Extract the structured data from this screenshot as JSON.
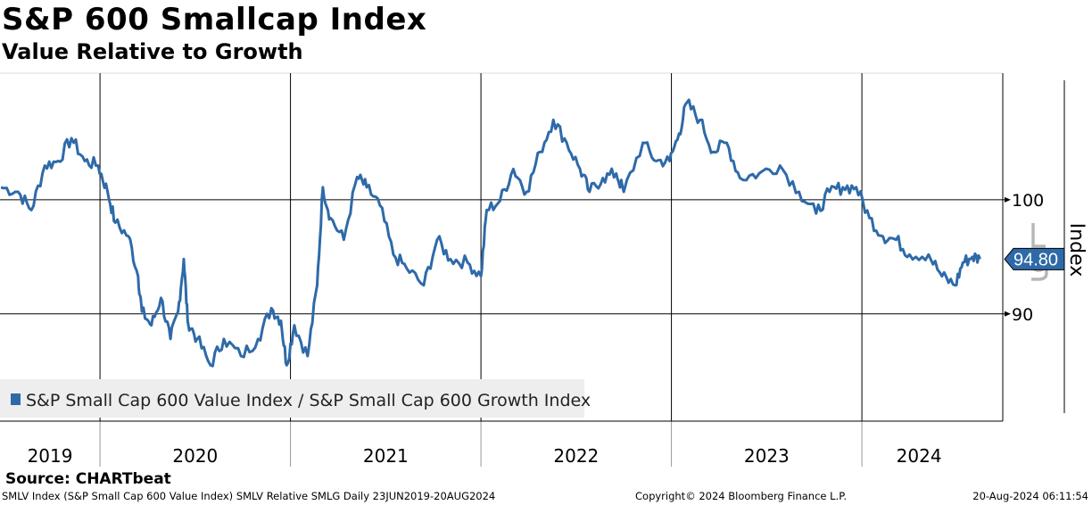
{
  "header": {
    "title": "S&P 600 Smallcap Index",
    "subtitle": "Value Relative to Growth"
  },
  "footer": {
    "source": "Source: CHARTbeat",
    "description": "SMLV Index (S&P Small Cap 600 Value Index) SMLV Relative SMLG  Daily 23JUN2019-20AUG2024",
    "copyright": "Copyright© 2024 Bloomberg Finance L.P.",
    "timestamp": "20-Aug-2024 06:11:54"
  },
  "chart_data": {
    "type": "line",
    "title": "S&P 600 Smallcap Index",
    "subtitle": "Value Relative to Growth",
    "ylabel": "Index",
    "xlim": [
      2019.475,
      2024.75
    ],
    "ylim": [
      80.6,
      111.1
    ],
    "yticks": [
      90,
      100
    ],
    "ytick_labels": [
      "90",
      "100"
    ],
    "xtick_labels": [
      "2019",
      "2020",
      "2021",
      "2022",
      "2023",
      "2024"
    ],
    "year_boundaries": [
      2020,
      2021,
      2022,
      2023,
      2024
    ],
    "last_value_label": "94.80",
    "last_value": 94.8,
    "watermark": "Lg",
    "legend": {
      "placement": "bottom-left",
      "entries": [
        "S&P Small Cap 600 Value Index / S&P Small Cap 600 Growth Index"
      ]
    },
    "series_color": "#2e6aa8",
    "series": [
      {
        "name": "S&P Small Cap 600 Value Index / S&P Small Cap 600 Growth Index",
        "x": [
          2019.48,
          2019.57,
          2019.64,
          2019.71,
          2019.78,
          2019.85,
          2019.92,
          2019.99,
          2020.04,
          2020.08,
          2020.15,
          2020.2,
          2020.22,
          2020.27,
          2020.32,
          2020.37,
          2020.41,
          2020.44,
          2020.46,
          2020.51,
          2020.58,
          2020.65,
          2020.74,
          2020.83,
          2020.9,
          2020.95,
          2020.98,
          2021.02,
          2021.09,
          2021.14,
          2021.17,
          2021.21,
          2021.28,
          2021.35,
          2021.4,
          2021.47,
          2021.54,
          2021.61,
          2021.7,
          2021.77,
          2021.84,
          2021.93,
          2022.0,
          2022.03,
          2022.1,
          2022.17,
          2022.24,
          2022.31,
          2022.38,
          2022.45,
          2022.52,
          2022.57,
          2022.64,
          2022.71,
          2022.75,
          2022.85,
          2022.92,
          2022.99,
          2023.04,
          2023.08,
          2023.15,
          2023.22,
          2023.29,
          2023.36,
          2023.46,
          2023.57,
          2023.67,
          2023.76,
          2023.83,
          2023.9,
          2023.97,
          2024.04,
          2024.11,
          2024.18,
          2024.25,
          2024.35,
          2024.42,
          2024.49,
          2024.53,
          2024.58,
          2024.62
        ],
        "values": [
          101.1,
          100.7,
          99.1,
          103.0,
          103.4,
          105.4,
          103.4,
          103.0,
          100.7,
          98.0,
          96.8,
          93.3,
          90.2,
          89.0,
          91.4,
          87.8,
          90.2,
          94.8,
          89.4,
          87.8,
          85.5,
          87.8,
          86.3,
          87.8,
          90.5,
          89.4,
          85.5,
          89.0,
          86.3,
          92.5,
          101.1,
          98.4,
          96.5,
          102.0,
          101.1,
          99.5,
          95.2,
          94.0,
          92.5,
          96.5,
          94.8,
          94.5,
          93.3,
          99.1,
          99.9,
          102.7,
          100.7,
          104.2,
          107.0,
          105.0,
          102.7,
          100.7,
          101.9,
          102.3,
          100.7,
          105.0,
          103.4,
          103.4,
          105.8,
          108.5,
          107.0,
          104.2,
          105.0,
          101.9,
          102.3,
          103.0,
          100.7,
          98.8,
          100.7,
          101.1,
          101.1,
          98.4,
          96.8,
          96.5,
          95.2,
          95.2,
          93.3,
          92.5,
          94.5,
          95.0,
          94.8
        ]
      }
    ]
  }
}
